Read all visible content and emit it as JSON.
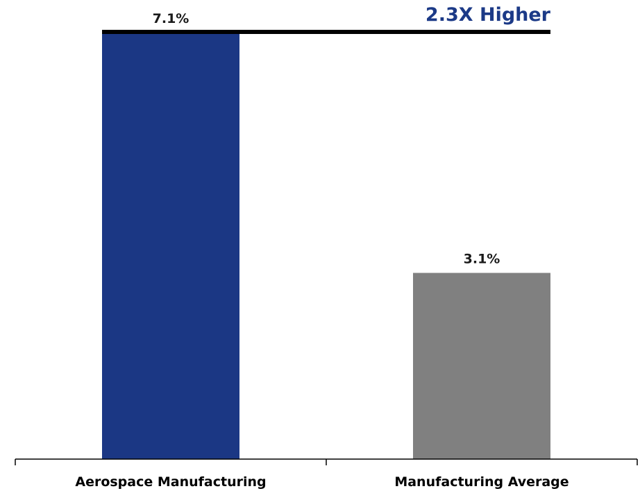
{
  "chart_data": {
    "type": "bar",
    "categories": [
      "Aerospace Manufacturing",
      "Manufacturing Average"
    ],
    "values": [
      7.1,
      3.1
    ],
    "data_labels": [
      "7.1%",
      "3.1%"
    ],
    "ylim": [
      0,
      7.1
    ],
    "grid": false,
    "legend": "none",
    "title": "",
    "xlabel": "",
    "ylabel": "",
    "annotation": {
      "text": "2.3X Higher",
      "color": "#1c3a87"
    },
    "colors": {
      "bars": [
        "#1b3784",
        "#808080"
      ],
      "axis": "#000000",
      "annotation_line": "#000000"
    }
  }
}
